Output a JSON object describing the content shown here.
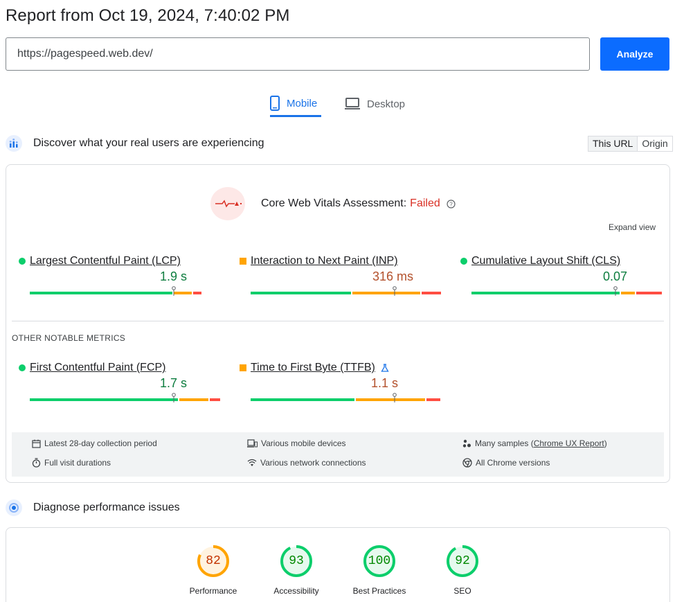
{
  "page": {
    "title": "Report from Oct 19, 2024, 7:40:02 PM"
  },
  "search": {
    "url_value": "https://pagespeed.web.dev/",
    "analyze_label": "Analyze"
  },
  "tabs": [
    {
      "label": "Mobile",
      "active": true
    },
    {
      "label": "Desktop",
      "active": false
    }
  ],
  "field_section": {
    "title": "Discover what your real users are experiencing",
    "toggle": [
      "This URL",
      "Origin"
    ],
    "assessment_label": "Core Web Vitals Assessment:",
    "assessment_status": "Failed",
    "expand_label": "Expand view",
    "core_metrics": [
      {
        "label": "Largest Contentful Paint (LCP)",
        "value": "1.9 s",
        "status": "good",
        "marker_fraction": 0.75,
        "segments": [
          0.75,
          0.1,
          0.05
        ]
      },
      {
        "label": "Interaction to Next Paint (INP)",
        "value": "316 ms",
        "status": "needs-improvement",
        "marker_fraction": 0.75,
        "segments": [
          0.53,
          0.36,
          0.11
        ]
      },
      {
        "label": "Cumulative Layout Shift (CLS)",
        "value": "0.07",
        "status": "good",
        "marker_fraction": 0.75,
        "segments": [
          0.78,
          0.08,
          0.14
        ]
      }
    ],
    "other_label": "OTHER NOTABLE METRICS",
    "other_metrics": [
      {
        "label": "First Contentful Paint (FCP)",
        "value": "1.7 s",
        "status": "good",
        "marker_fraction": 0.75,
        "segments": [
          0.78,
          0.16,
          0.06
        ]
      },
      {
        "label": "Time to First Byte (TTFB)",
        "value": "1.1 s",
        "status": "needs-improvement",
        "marker_fraction": 0.75,
        "segments": [
          0.55,
          0.37,
          0.08
        ]
      }
    ],
    "info": {
      "collection_period": "Latest 28-day collection period",
      "devices": "Various mobile devices",
      "samples_prefix": "Many samples (",
      "samples_link": "Chrome UX Report",
      "samples_suffix": ")",
      "visit_durations": "Full visit durations",
      "network": "Various network connections",
      "chrome_versions": "All Chrome versions"
    }
  },
  "lab_section": {
    "title": "Diagnose performance issues",
    "scores": [
      {
        "label": "Performance",
        "score": "82",
        "value": 82,
        "color": "#ffa400",
        "text_color": "#c33300",
        "bg": "#fff3e0"
      },
      {
        "label": "Accessibility",
        "score": "93",
        "value": 93,
        "color": "#0cce6b",
        "text_color": "#008800",
        "bg": "#e6f9ee"
      },
      {
        "label": "Best Practices",
        "score": "100",
        "value": 100,
        "color": "#0cce6b",
        "text_color": "#008800",
        "bg": "#e6f9ee"
      },
      {
        "label": "SEO",
        "score": "92",
        "value": 92,
        "color": "#0cce6b",
        "text_color": "#008800",
        "bg": "#e6f9ee"
      }
    ]
  },
  "colors": {
    "accent": "#1a73e8",
    "good": "#0cce6b",
    "average": "#ffa400",
    "poor": "#ff4e42",
    "failed": "#d93025"
  }
}
